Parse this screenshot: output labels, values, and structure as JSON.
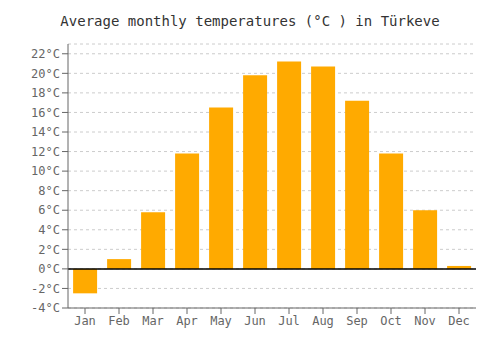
{
  "chart_data": {
    "type": "bar",
    "title": "Average monthly temperatures (°C ) in Türkeve",
    "categories": [
      "Jan",
      "Feb",
      "Mar",
      "Apr",
      "May",
      "Jun",
      "Jul",
      "Aug",
      "Sep",
      "Oct",
      "Nov",
      "Dec"
    ],
    "values": [
      -2.5,
      1.0,
      5.8,
      11.8,
      16.5,
      19.8,
      21.2,
      20.7,
      17.2,
      11.8,
      6.0,
      0.3
    ],
    "color": "#FFAA00",
    "ylim": [
      -4,
      23
    ],
    "yticks": [
      {
        "value": -4,
        "label": "-4°C"
      },
      {
        "value": -2,
        "label": "-2°C"
      },
      {
        "value": 0,
        "label": "0°C"
      },
      {
        "value": 2,
        "label": "2°C"
      },
      {
        "value": 4,
        "label": "4°C"
      },
      {
        "value": 6,
        "label": "6°C"
      },
      {
        "value": 8,
        "label": "8°C"
      },
      {
        "value": 10,
        "label": "10°C"
      },
      {
        "value": 12,
        "label": "12°C"
      },
      {
        "value": 14,
        "label": "14°C"
      },
      {
        "value": 16,
        "label": "16°C"
      },
      {
        "value": 18,
        "label": "18°C"
      },
      {
        "value": 20,
        "label": "20°C"
      },
      {
        "value": 22,
        "label": "22°C"
      }
    ],
    "grid": true
  }
}
